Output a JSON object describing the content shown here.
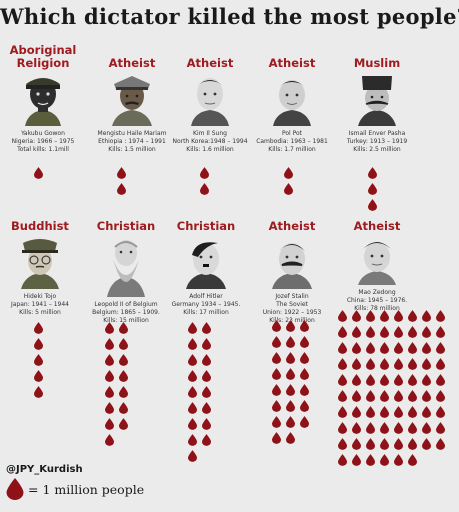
{
  "title": "Which dictator killed the most people?",
  "legend": {
    "unit": "= 1 million people"
  },
  "handle": "@JPY_Kurdish",
  "dictators": [
    {
      "religion": "Aboriginal Religion",
      "info": "Yakubu Gowon\nNigeria: 1966 – 1975\nTotal kills: 1.1mill",
      "drops": 1
    },
    {
      "religion": "Atheist",
      "info": "Mengistu Haile Mariam\nEthiopia : 1974 – 1991\nKills: 1.5 million",
      "drops": 2
    },
    {
      "religion": "Atheist",
      "info": "Kim Il Sung\nNorth Korea:1948 – 1994\nKills: 1.6 million",
      "drops": 2
    },
    {
      "religion": "Atheist",
      "info": "Pol Pot\nCambodia: 1963 – 1981\nKills: 1.7 million",
      "drops": 2
    },
    {
      "religion": "Muslim",
      "info": "Ismail Enver Pasha\nTurkey: 1913 – 1919\nKills: 2.5 million",
      "drops": 3
    },
    {
      "religion": "Buddhist",
      "info": "Hideki Tojo\nJapan: 1941 – 1944\nKills: 5 million",
      "drops": 5
    },
    {
      "religion": "Christian",
      "info": "Leopold II of Belgium\nBelgium: 1865 – 1909.\nKills: 15 million",
      "drops": 15
    },
    {
      "religion": "Christian",
      "info": "Adolf Hitler\nGermany 1934 – 1945.\nKills: 17 million",
      "drops": 17
    },
    {
      "religion": "Atheist",
      "info": "Jozef Stalin\nThe Soviet\nUnion: 1922 – 1953\nKills: 23 million",
      "drops": 23
    },
    {
      "religion": "Atheist",
      "info": "Mao Zedong\nChina: 1945 – 1976.\nKills: 78 million",
      "drops": 78
    }
  ]
}
